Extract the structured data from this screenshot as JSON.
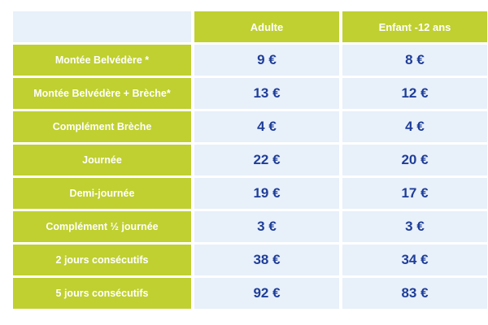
{
  "header": {
    "adult": "Adulte",
    "child": "Enfant -12 ans"
  },
  "rows": [
    {
      "label": "Montée Belvédère *",
      "adult": "9 €",
      "child": "8 €"
    },
    {
      "label": "Montée Belvédère + Brèche*",
      "adult": "13 €",
      "child": "12 €"
    },
    {
      "label": "Complément Brèche",
      "adult": "4 €",
      "child": "4 €"
    },
    {
      "label": "Journée",
      "adult": "22 €",
      "child": "20 €"
    },
    {
      "label": "Demi-journée",
      "adult": "19 €",
      "child": "17 €"
    },
    {
      "label": "Complément ½ journée",
      "adult": "3 €",
      "child": "3 €"
    },
    {
      "label": "2 jours consécutifs",
      "adult": "38 €",
      "child": "34 €"
    },
    {
      "label": "5 jours consécutifs",
      "adult": "92 €",
      "child": "83 €"
    }
  ],
  "colors": {
    "header_bg": "#bfd030",
    "cell_bg": "#e8f0fa",
    "price_text": "#1f3e98",
    "label_text": "#ffffff"
  }
}
